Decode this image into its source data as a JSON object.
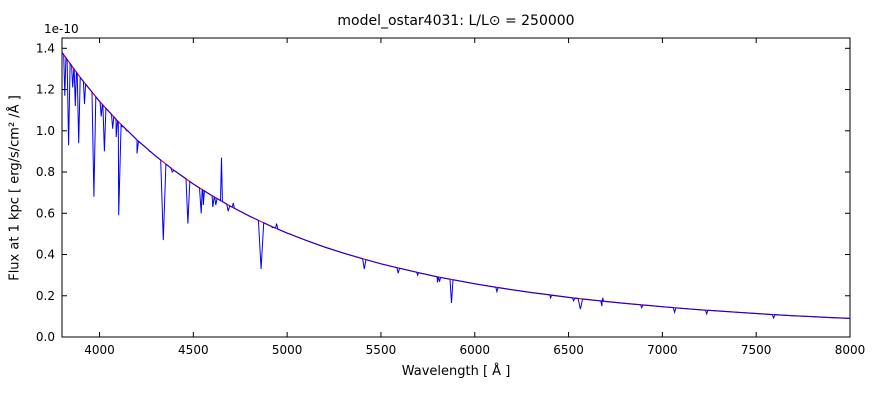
{
  "chart_data": {
    "type": "line",
    "title": "model_ostar4031: L/L⊙ = 250000",
    "xlabel": "Wavelength [ Å ]",
    "ylabel": "Flux at 1 kpc [ erg/s/cm² /Å ]",
    "y_offset_text": "1e-10",
    "xlim": [
      3800,
      8000
    ],
    "ylim": [
      0,
      1.45
    ],
    "x_ticks": [
      "4000",
      "4500",
      "5000",
      "5500",
      "6000",
      "6500",
      "7000",
      "7500",
      "8000"
    ],
    "y_ticks": [
      "0.0",
      "0.2",
      "0.4",
      "0.6",
      "0.8",
      "1.0",
      "1.2",
      "1.4"
    ],
    "grid": false,
    "legend": "none",
    "flux_unit_scale": "1e-10 erg/s/cm²/Å at 1 kpc",
    "series": [
      {
        "name": "model spectrum with absorption lines",
        "color": "#0000ff"
      },
      {
        "name": "smooth continuum",
        "color": "#ff0000"
      }
    ],
    "continuum_points": [
      [
        3800,
        1.38
      ],
      [
        3900,
        1.255
      ],
      [
        4000,
        1.143
      ],
      [
        4100,
        1.044
      ],
      [
        4200,
        0.956
      ],
      [
        4300,
        0.877
      ],
      [
        4400,
        0.806
      ],
      [
        4500,
        0.742
      ],
      [
        4600,
        0.685
      ],
      [
        4700,
        0.633
      ],
      [
        4800,
        0.586
      ],
      [
        4900,
        0.543
      ],
      [
        5000,
        0.504
      ],
      [
        5100,
        0.469
      ],
      [
        5200,
        0.436
      ],
      [
        5300,
        0.407
      ],
      [
        5400,
        0.38
      ],
      [
        5500,
        0.355
      ],
      [
        5600,
        0.333
      ],
      [
        5700,
        0.312
      ],
      [
        5800,
        0.292
      ],
      [
        5900,
        0.275
      ],
      [
        6000,
        0.258
      ],
      [
        6100,
        0.243
      ],
      [
        6200,
        0.229
      ],
      [
        6300,
        0.216
      ],
      [
        6400,
        0.204
      ],
      [
        6500,
        0.192
      ],
      [
        6600,
        0.182
      ],
      [
        6700,
        0.172
      ],
      [
        6800,
        0.163
      ],
      [
        6900,
        0.155
      ],
      [
        7000,
        0.147
      ],
      [
        7100,
        0.139
      ],
      [
        7200,
        0.132
      ],
      [
        7300,
        0.126
      ],
      [
        7400,
        0.12
      ],
      [
        7500,
        0.114
      ],
      [
        7600,
        0.108
      ],
      [
        7700,
        0.103
      ],
      [
        7800,
        0.099
      ],
      [
        7900,
        0.094
      ],
      [
        8000,
        0.09
      ]
    ],
    "line_columns": [
      "wavelength_angstrom",
      "flux_at_line",
      "half_width_angstrom"
    ],
    "absorption_lines": [
      [
        3815,
        1.17,
        6
      ],
      [
        3835,
        0.93,
        8
      ],
      [
        3857,
        1.21,
        6
      ],
      [
        3871,
        1.12,
        6
      ],
      [
        3889,
        0.94,
        8
      ],
      [
        3920,
        1.13,
        6
      ],
      [
        3970,
        0.68,
        10
      ],
      [
        4009,
        1.07,
        6
      ],
      [
        4026,
        0.9,
        8
      ],
      [
        4070,
        1.01,
        6
      ],
      [
        4089,
        0.97,
        7
      ],
      [
        4102,
        0.59,
        14
      ],
      [
        4121,
        1.02,
        6
      ],
      [
        4144,
        1.0,
        6
      ],
      [
        4200,
        0.89,
        8
      ],
      [
        4267,
        0.9,
        7
      ],
      [
        4340,
        0.47,
        14
      ],
      [
        4388,
        0.8,
        8
      ],
      [
        4471,
        0.55,
        10
      ],
      [
        4542,
        0.6,
        9
      ],
      [
        4553,
        0.64,
        6
      ],
      [
        4604,
        0.63,
        7
      ],
      [
        4620,
        0.64,
        6
      ],
      [
        4686,
        0.61,
        8
      ],
      [
        4713,
        0.65,
        6
      ],
      [
        4861,
        0.33,
        14
      ],
      [
        4922,
        0.53,
        8
      ],
      [
        4944,
        0.55,
        6
      ],
      [
        5016,
        0.5,
        7
      ],
      [
        5411,
        0.33,
        9
      ],
      [
        5592,
        0.31,
        7
      ],
      [
        5696,
        0.3,
        6
      ],
      [
        5801,
        0.265,
        6
      ],
      [
        5812,
        0.268,
        6
      ],
      [
        5876,
        0.165,
        8
      ],
      [
        6118,
        0.22,
        6
      ],
      [
        6404,
        0.19,
        6
      ],
      [
        6527,
        0.175,
        6
      ],
      [
        6563,
        0.135,
        12
      ],
      [
        6678,
        0.15,
        7
      ],
      [
        6890,
        0.142,
        6
      ],
      [
        7065,
        0.12,
        7
      ],
      [
        7236,
        0.112,
        6
      ],
      [
        7593,
        0.092,
        7
      ]
    ],
    "emission_lines": [
      [
        4650,
        0.87,
        5
      ],
      [
        6683,
        0.19,
        5
      ]
    ]
  }
}
